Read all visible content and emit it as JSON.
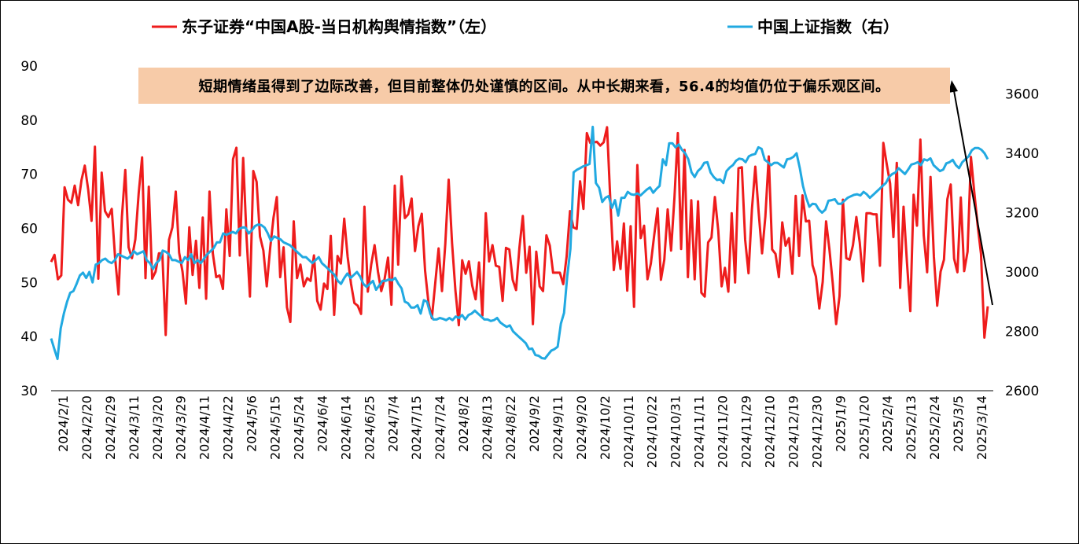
{
  "chart_data": {
    "type": "line",
    "legend": [
      {
        "name": "东子证券“中国A股-当日机构舆情指数”（左）",
        "color": "#ee1c1c"
      },
      {
        "name": "中国上证指数（右）",
        "color": "#21a9e1"
      }
    ],
    "left_axis": {
      "min": 30,
      "max": 90,
      "ticks": [
        30,
        40,
        50,
        60,
        70,
        80,
        90
      ]
    },
    "right_axis": {
      "min": 2600,
      "max": 3700,
      "ticks": [
        2600,
        2800,
        3000,
        3200,
        3400,
        3600
      ]
    },
    "x_tick_labels": [
      "2024/2/1",
      "2024/2/20",
      "2024/2/29",
      "2024/3/11",
      "2024/3/20",
      "2024/3/29",
      "2024/4/11",
      "2024/4/22",
      "2024/5/6",
      "2024/5/15",
      "2024/5/24",
      "2024/6/4",
      "2024/6/14",
      "2024/6/25",
      "2024/7/4",
      "2024/7/15",
      "2024/7/24",
      "2024/8/2",
      "2024/8/13",
      "2024/8/22",
      "2024/9/2",
      "2024/9/11",
      "2024/9/20",
      "2024/10/2",
      "2024/10/11",
      "2024/10/22",
      "2024/10/31",
      "2024/11/11",
      "2024/11/20",
      "2024/11/29",
      "2024/12/10",
      "2024/12/19",
      "2024/12/30",
      "2025/1/9",
      "2025/1/20",
      "2025/2/4",
      "2025/2/13",
      "2025/2/24",
      "2025/3/5",
      "2025/3/14"
    ],
    "series": [
      {
        "name": "东子证券“中国A股-当日机构舆情指数”（左）",
        "axis": "left",
        "color": "#ee1c1c",
        "values": [
          53.8,
          55.1,
          50.6,
          51.3,
          67.6,
          65.3,
          64.7,
          67.9,
          64.3,
          68.9,
          71.6,
          67.2,
          61.4,
          75.1,
          50.7,
          70.3,
          63.2,
          62.1,
          63.6,
          54.5,
          47.8,
          62.1,
          70.8,
          56.5,
          54.5,
          58.0,
          66.6,
          73.1,
          50.8,
          67.7,
          50.7,
          52.0,
          55.4,
          55.4,
          40.3,
          57.9,
          60.2,
          66.8,
          55.5,
          52.0,
          46.1,
          60.2,
          51.4,
          57.7,
          49.0,
          62.0,
          47.0,
          66.8,
          55.4,
          51.0,
          51.3,
          48.8,
          63.5,
          54.9,
          72.8,
          74.9,
          55.0,
          73.0,
          58.3,
          47.4,
          70.6,
          68.6,
          58.5,
          55.9,
          49.3,
          56.3,
          62.0,
          65.8,
          51.0,
          56.5,
          45.4,
          42.7,
          61.3,
          50.8,
          53.3,
          49.3,
          50.8,
          50.3,
          55.0,
          46.6,
          45.0,
          49.8,
          48.8,
          58.6,
          44.0,
          54.9,
          53.5,
          61.8,
          54.8,
          49.8,
          46.2,
          45.7,
          44.2,
          64.0,
          48.3,
          53.3,
          56.9,
          52.0,
          48.4,
          50.7,
          54.6,
          45.9,
          67.9,
          53.3,
          69.6,
          61.9,
          62.6,
          65.5,
          55.8,
          60.4,
          62.7,
          52.2,
          46.3,
          43.4,
          49.8,
          56.3,
          48.4,
          57.1,
          69.0,
          57.3,
          48.5,
          42.1,
          54.1,
          51.6,
          53.9,
          49.4,
          46.9,
          53.7,
          43.9,
          62.8,
          53.9,
          56.9,
          53.1,
          52.9,
          46.6,
          56.4,
          56.1,
          50.5,
          48.6,
          56.5,
          62.3,
          51.8,
          56.6,
          42.3,
          55.7,
          49.3,
          48.4,
          58.7,
          56.8,
          51.8,
          51.8,
          51.8,
          49.7,
          54.8,
          63.2,
          60.2,
          59.9,
          68.7,
          63.6,
          77.6,
          75.8,
          75.9,
          76.0,
          75.3,
          75.9,
          78.7,
          64.8,
          52.3,
          57.6,
          52.5,
          60.9,
          48.5,
          60.4,
          45.5,
          71.7,
          58.2,
          60.5,
          50.6,
          53.5,
          58.8,
          63.7,
          50.5,
          54.2,
          63.5,
          55.9,
          65.7,
          77.6,
          56.2,
          74.5,
          51.0,
          65.2,
          50.6,
          65.0,
          48.1,
          47.4,
          57.4,
          58.3,
          65.8,
          59.6,
          49.3,
          52.7,
          48.3,
          62.8,
          50.0,
          71.1,
          71.3,
          57.9,
          51.7,
          63.5,
          71.4,
          62.9,
          55.4,
          62.2,
          73.3,
          56.1,
          55.3,
          51.0,
          61.1,
          56.8,
          58.2,
          51.6,
          66.0,
          54.9,
          66.1,
          61.3,
          61.4,
          53.2,
          51.1,
          45.2,
          50.1,
          61.3,
          56.2,
          49.8,
          42.3,
          47.5,
          65.3,
          54.5,
          54.2,
          56.9,
          62.1,
          57.4,
          50.2,
          62.8,
          62.8,
          62.6,
          62.6,
          53.1,
          75.8,
          71.9,
          68.3,
          58.4,
          72.1,
          49.0,
          64.0,
          53.8,
          44.7,
          66.2,
          60.5,
          76.4,
          58.7,
          51.9,
          69.5,
          54.7,
          45.7,
          52.0,
          54.2,
          65.4,
          68.1,
          54.4,
          51.9,
          65.7,
          52.1,
          55.7,
          73.2,
          66.6,
          60.6,
          55.3,
          39.8,
          45.6
        ]
      },
      {
        "name": "中国上证指数（右）",
        "axis": "right",
        "color": "#21a9e1",
        "values": [
          2776,
          2740,
          2707,
          2810,
          2860,
          2900,
          2930,
          2936,
          2960,
          2988,
          2998,
          2980,
          3000,
          2965,
          3025,
          3030,
          3040,
          3045,
          3035,
          3030,
          3040,
          3060,
          3055,
          3050,
          3045,
          3055,
          3070,
          3060,
          3065,
          3070,
          3040,
          3030,
          3010,
          3030,
          3040,
          3072,
          3068,
          3060,
          3040,
          3040,
          3035,
          3030,
          3050,
          3040,
          3060,
          3030,
          3040,
          3030,
          3045,
          3060,
          3070,
          3080,
          3100,
          3100,
          3130,
          3125,
          3130,
          3135,
          3130,
          3145,
          3150,
          3150,
          3130,
          3140,
          3155,
          3160,
          3158,
          3150,
          3130,
          3105,
          3120,
          3115,
          3110,
          3100,
          3095,
          3090,
          3080,
          3070,
          3060,
          3050,
          3050,
          3040,
          3030,
          3040,
          3050,
          3030,
          3020,
          3010,
          3000,
          2990,
          2970,
          2960,
          2980,
          2995,
          2980,
          2990,
          3000,
          2985,
          2960,
          2950,
          2960,
          2970,
          2940,
          2955,
          2970,
          2970,
          2975,
          2972,
          2980,
          2960,
          2945,
          2900,
          2895,
          2880,
          2880,
          2888,
          2860,
          2905,
          2900,
          2860,
          2840,
          2840,
          2845,
          2842,
          2838,
          2845,
          2838,
          2850,
          2845,
          2855,
          2840,
          2855,
          2860,
          2870,
          2860,
          2850,
          2840,
          2840,
          2835,
          2838,
          2845,
          2830,
          2822,
          2815,
          2820,
          2800,
          2790,
          2780,
          2770,
          2760,
          2740,
          2742,
          2720,
          2718,
          2710,
          2708,
          2722,
          2735,
          2740,
          2748,
          2826,
          2862,
          2986,
          3078,
          3336,
          3344,
          3350,
          3356,
          3360,
          3364,
          3489,
          3300,
          3284,
          3236,
          3250,
          3256,
          3216,
          3242,
          3190,
          3250,
          3250,
          3270,
          3262,
          3260,
          3265,
          3258,
          3268,
          3278,
          3285,
          3267,
          3280,
          3290,
          3380,
          3360,
          3434,
          3434,
          3420,
          3430,
          3412,
          3400,
          3380,
          3336,
          3320,
          3340,
          3350,
          3368,
          3370,
          3335,
          3320,
          3310,
          3312,
          3300,
          3340,
          3352,
          3360,
          3375,
          3382,
          3380,
          3370,
          3390,
          3395,
          3398,
          3420,
          3415,
          3378,
          3370,
          3360,
          3368,
          3368,
          3360,
          3352,
          3380,
          3382,
          3388,
          3400,
          3350,
          3290,
          3250,
          3220,
          3230,
          3228,
          3210,
          3200,
          3210,
          3240,
          3242,
          3245,
          3230,
          3230,
          3240,
          3250,
          3255,
          3260,
          3262,
          3258,
          3270,
          3262,
          3250,
          3260,
          3270,
          3280,
          3290,
          3300,
          3320,
          3330,
          3335,
          3350,
          3340,
          3330,
          3345,
          3362,
          3365,
          3370,
          3360,
          3380,
          3376,
          3383,
          3360,
          3350,
          3340,
          3345,
          3366,
          3370,
          3378,
          3360,
          3350,
          3370,
          3380,
          3390,
          3410,
          3418,
          3418,
          3412,
          3400,
          3380
        ]
      }
    ],
    "annotation": "短期情绪虽得到了边际改善，但目前整体仍处谨慎的区间。从中长期来看，56.4的均值仍位于偏乐观区间。"
  }
}
